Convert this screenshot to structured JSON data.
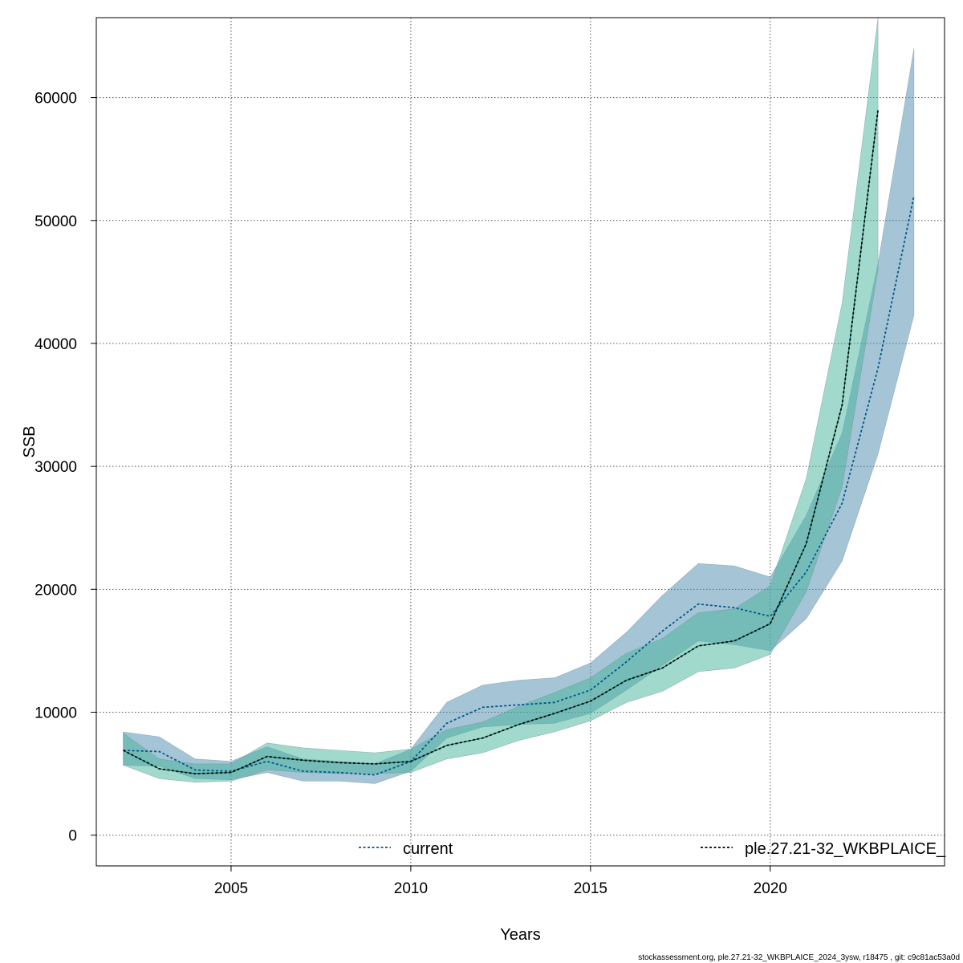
{
  "chart_data": {
    "type": "area",
    "xlabel": "Years",
    "ylabel": "SSB",
    "xlim": [
      2001.25,
      2024.85
    ],
    "ylim": [
      -2500,
      66500
    ],
    "xticks": [
      2005,
      2010,
      2015,
      2020
    ],
    "yticks": [
      0,
      10000,
      20000,
      30000,
      40000,
      50000,
      60000
    ],
    "grid": true,
    "legend_position": "bottom",
    "series": [
      {
        "name": "current",
        "color": "#00588B",
        "band_color": "#4C8BB0",
        "x": [
          2002,
          2003,
          2004,
          2005,
          2006,
          2007,
          2008,
          2009,
          2010,
          2011,
          2012,
          2013,
          2014,
          2015,
          2016,
          2017,
          2018,
          2019,
          2020,
          2021,
          2022,
          2023,
          2024
        ],
        "y": [
          6900,
          6800,
          5300,
          5200,
          6000,
          5200,
          5100,
          4900,
          6000,
          9100,
          10400,
          10600,
          10800,
          11800,
          14100,
          16600,
          18800,
          18500,
          17800,
          21400,
          27000,
          38000,
          52000
        ],
        "lower": [
          5700,
          5600,
          4600,
          4500,
          5100,
          4400,
          4400,
          4200,
          5200,
          7900,
          8800,
          9000,
          9100,
          9900,
          11800,
          13800,
          15800,
          15500,
          15000,
          17600,
          22300,
          31000,
          42300
        ],
        "upper": [
          8400,
          8000,
          6200,
          6000,
          7200,
          6200,
          6000,
          5800,
          7000,
          10800,
          12200,
          12600,
          12800,
          14000,
          16500,
          19500,
          22100,
          21900,
          21000,
          26000,
          32700,
          46500,
          64000
        ]
      },
      {
        "name": "ple.27.21-32_WKBPLAICE_",
        "color": "#005D4A",
        "band_color": "#45B39C",
        "x": [
          2002,
          2003,
          2004,
          2005,
          2006,
          2007,
          2008,
          2009,
          2010,
          2011,
          2012,
          2013,
          2014,
          2015,
          2016,
          2017,
          2018,
          2019,
          2020,
          2021,
          2022,
          2023
        ],
        "y": [
          6900,
          5400,
          5000,
          5100,
          6400,
          6100,
          5900,
          5800,
          6000,
          7300,
          7900,
          9000,
          9900,
          10900,
          12600,
          13600,
          15400,
          15800,
          17200,
          23700,
          35000,
          59000
        ],
        "lower": [
          5700,
          4600,
          4300,
          4400,
          5300,
          5100,
          5000,
          5000,
          5100,
          6200,
          6700,
          7700,
          8400,
          9300,
          10800,
          11700,
          13300,
          13600,
          14700,
          19800,
          28300,
          46000
        ],
        "upper": [
          8300,
          6200,
          5800,
          5800,
          7500,
          7100,
          6900,
          6700,
          7000,
          8600,
          9200,
          10500,
          11600,
          12800,
          14800,
          16000,
          18100,
          18400,
          20300,
          29000,
          43300,
          66500
        ]
      }
    ]
  },
  "footer": "stockassessment.org, ple.27.21-32_WKBPLAICE_2024_3ysw, r18475 , git: c9c81ac53a0d"
}
